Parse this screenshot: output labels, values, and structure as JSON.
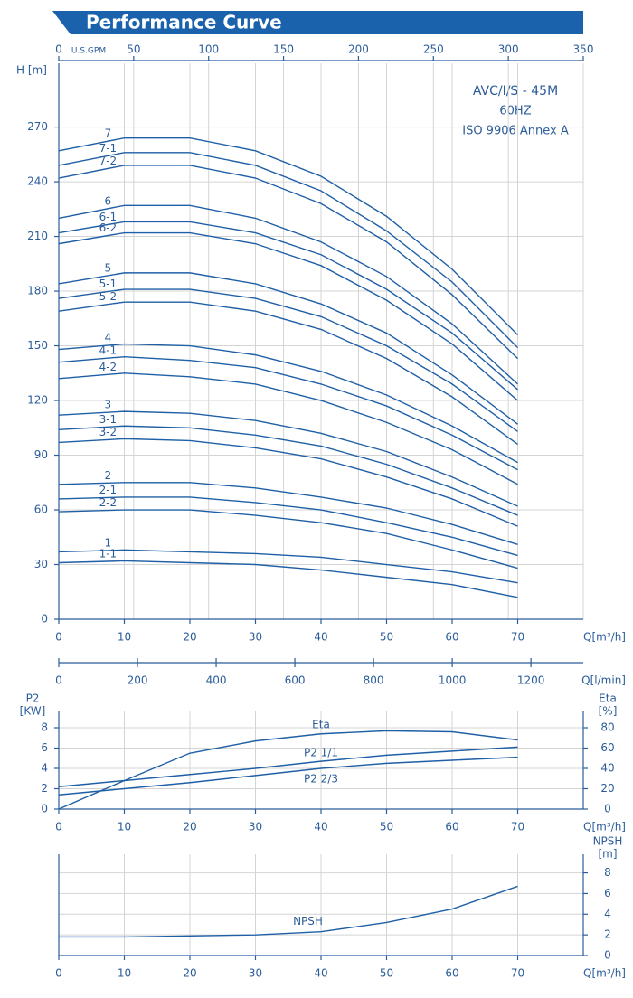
{
  "chart_data": [
    {
      "type": "line",
      "title": "Performance Curve",
      "annotations": [
        "AVC/I/S - 45M",
        "60HZ",
        "ISO 9906 Annex A"
      ],
      "ylabel": "H [m]",
      "xlabel": "Q[m³/h]",
      "x": [
        0,
        10,
        20,
        30,
        40,
        50,
        60,
        70
      ],
      "xlim": [
        0,
        80
      ],
      "xticks": [
        0,
        10,
        20,
        30,
        40,
        50,
        60,
        70
      ],
      "ylim": [
        0,
        305
      ],
      "yticks": [
        0,
        30,
        60,
        90,
        120,
        150,
        180,
        210,
        240,
        270
      ],
      "x2label": "U.S.GPM",
      "x2lim": [
        0,
        350
      ],
      "x2ticks": [
        0,
        50,
        100,
        150,
        200,
        250,
        300,
        350
      ],
      "x3label": "Q[l/min]",
      "x3lim": [
        0,
        1333
      ],
      "x3ticks": [
        0,
        200,
        400,
        600,
        800,
        1000,
        1200
      ],
      "grid": true,
      "series": [
        {
          "name": "7",
          "color": "#1f5fa6",
          "values": [
            257,
            264,
            264,
            257,
            243,
            221,
            192,
            156
          ]
        },
        {
          "name": "7-1",
          "color": "#1f5fa6",
          "values": [
            249,
            256,
            256,
            249,
            235,
            213,
            185,
            149
          ]
        },
        {
          "name": "7-2",
          "color": "#1f5fa6",
          "values": [
            242,
            249,
            249,
            242,
            228,
            207,
            178,
            143
          ]
        },
        {
          "name": "6",
          "color": "#1f5fa6",
          "values": [
            220,
            227,
            227,
            220,
            207,
            188,
            162,
            129
          ]
        },
        {
          "name": "6-1",
          "color": "#1f5fa6",
          "values": [
            212,
            218,
            218,
            212,
            200,
            181,
            157,
            126
          ]
        },
        {
          "name": "6-2",
          "color": "#1f5fa6",
          "values": [
            206,
            212,
            212,
            206,
            194,
            175,
            151,
            120
          ]
        },
        {
          "name": "5",
          "color": "#1f5fa6",
          "values": [
            184,
            190,
            190,
            184,
            173,
            157,
            134,
            107
          ]
        },
        {
          "name": "5-1",
          "color": "#1f5fa6",
          "values": [
            176,
            181,
            181,
            176,
            166,
            150,
            129,
            103
          ]
        },
        {
          "name": "5-2",
          "color": "#1f5fa6",
          "values": [
            169,
            174,
            174,
            169,
            159,
            143,
            122,
            96
          ]
        },
        {
          "name": "4",
          "color": "#1f5fa6",
          "values": [
            148,
            151,
            150,
            145,
            136,
            123,
            106,
            86
          ]
        },
        {
          "name": "4-1",
          "color": "#1f5fa6",
          "values": [
            141,
            144,
            142,
            138,
            129,
            117,
            101,
            82
          ]
        },
        {
          "name": "4-2",
          "color": "#1f5fa6",
          "values": [
            132,
            135,
            133,
            129,
            120,
            108,
            93,
            74
          ]
        },
        {
          "name": "3",
          "color": "#1f5fa6",
          "values": [
            112,
            114,
            113,
            109,
            102,
            92,
            78,
            62
          ]
        },
        {
          "name": "3-1",
          "color": "#1f5fa6",
          "values": [
            104,
            106,
            105,
            101,
            95,
            85,
            72,
            57
          ]
        },
        {
          "name": "3-2",
          "color": "#1f5fa6",
          "values": [
            97,
            99,
            98,
            94,
            88,
            78,
            66,
            51
          ]
        },
        {
          "name": "2",
          "color": "#1f5fa6",
          "values": [
            74,
            75,
            75,
            72,
            67,
            61,
            52,
            41
          ]
        },
        {
          "name": "2-1",
          "color": "#1f5fa6",
          "values": [
            66,
            67,
            67,
            64,
            60,
            53,
            45,
            35
          ]
        },
        {
          "name": "2-2",
          "color": "#1f5fa6",
          "values": [
            59,
            60,
            60,
            57,
            53,
            47,
            38,
            28
          ]
        },
        {
          "name": "1",
          "color": "#1f5fa6",
          "values": [
            37,
            38,
            37,
            36,
            34,
            30,
            26,
            20
          ]
        },
        {
          "name": "1-1",
          "color": "#1f5fa6",
          "values": [
            31,
            32,
            31,
            30,
            27,
            23,
            19,
            12
          ]
        }
      ]
    },
    {
      "type": "line",
      "ylabel": "P2",
      "yunit": "[KW]",
      "y2label": "Eta",
      "y2unit": "[%]",
      "xlabel": "Q[m³/h]",
      "x": [
        0,
        10,
        20,
        30,
        40,
        50,
        60,
        70
      ],
      "xlim": [
        0,
        80
      ],
      "xticks": [
        0,
        10,
        20,
        30,
        40,
        50,
        60,
        70
      ],
      "ylim": [
        0,
        9.6
      ],
      "yticks": [
        0,
        2,
        4,
        6,
        8
      ],
      "y2lim": [
        0,
        96
      ],
      "y2ticks": [
        0,
        20,
        40,
        60,
        80
      ],
      "grid": true,
      "series": [
        {
          "name": "Eta",
          "color": "#1f5fa6",
          "axis": "y2",
          "values": [
            0,
            28,
            55,
            67,
            74,
            77,
            76,
            68
          ]
        },
        {
          "name": "P2  1/1",
          "color": "#1f5fa6",
          "values": [
            2.2,
            2.8,
            3.4,
            4.0,
            4.7,
            5.3,
            5.7,
            6.1
          ]
        },
        {
          "name": "P2  2/3",
          "color": "#1f5fa6",
          "values": [
            1.4,
            2.0,
            2.6,
            3.3,
            4.0,
            4.5,
            4.8,
            5.1
          ]
        }
      ]
    },
    {
      "type": "line",
      "y2label": "NPSH",
      "y2unit": "[m]",
      "xlabel": "Q[m³/h]",
      "x": [
        0,
        10,
        20,
        30,
        40,
        50,
        60,
        70
      ],
      "xlim": [
        0,
        80
      ],
      "xticks": [
        0,
        10,
        20,
        30,
        40,
        50,
        60,
        70
      ],
      "y2lim": [
        0,
        9.8
      ],
      "y2ticks": [
        0,
        2,
        4,
        6,
        8
      ],
      "grid": true,
      "series": [
        {
          "name": "NPSH",
          "color": "#1f5fa6",
          "axis": "y2",
          "values": [
            1.8,
            1.8,
            1.9,
            2.0,
            2.3,
            3.2,
            4.5,
            6.7
          ]
        }
      ]
    }
  ]
}
